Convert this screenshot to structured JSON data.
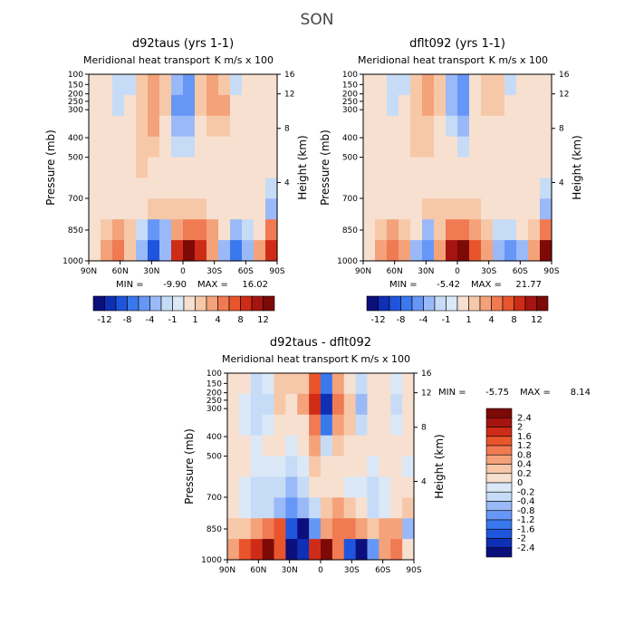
{
  "page_title": "SON",
  "colors": {
    "cold": [
      "#0b0f7c",
      "#0f2fb5",
      "#1f55dc",
      "#3a78ee",
      "#6797f6",
      "#9ab9f8",
      "#c6dcf6",
      "#dbe8f8"
    ],
    "warm": [
      "#f7e0d0",
      "#f7c8a8",
      "#f4a27a",
      "#f07a52",
      "#e8552c",
      "#cf2c18",
      "#a51410",
      "#7d0a07"
    ]
  },
  "chart_data": [
    {
      "id": "panel1",
      "type": "heatmap",
      "title": "d92taus (yrs 1-1)",
      "subtitle": "Meridional heat transport",
      "units": "K m/s x 100",
      "ylabel": "Pressure (mb)",
      "ylabel_right": "Height (km)",
      "x_ticks": [
        "90N",
        "60N",
        "30N",
        "0",
        "30S",
        "60S",
        "90S"
      ],
      "y_ticks": [
        "100",
        "150",
        "200",
        "250",
        "300",
        "400",
        "500",
        "700",
        "850",
        "1000"
      ],
      "height_ticks": [
        "16",
        "12",
        "8",
        "4"
      ],
      "min_label": "MIN =",
      "min_value": "-9.90",
      "max_label": "MAX =",
      "max_value": "16.02",
      "colorbar_labels": [
        "-12",
        "-8",
        "-4",
        "-1",
        "1",
        "4",
        "8",
        "12"
      ],
      "field": [
        [
          0,
          0,
          -1,
          -1,
          1,
          2,
          1,
          -3,
          -4,
          1,
          2,
          1,
          -1,
          0,
          0,
          0
        ],
        [
          0,
          0,
          -1,
          0,
          1,
          3,
          1,
          -4,
          -5,
          1,
          2,
          2,
          0,
          0,
          0,
          0
        ],
        [
          0,
          0,
          0,
          0,
          1,
          2,
          0,
          -2,
          -3,
          0,
          1,
          1,
          0,
          0,
          0,
          0
        ],
        [
          0,
          0,
          0,
          0,
          1,
          1,
          0,
          -1,
          -1,
          0,
          0,
          0,
          0,
          0,
          0,
          0
        ],
        [
          0,
          0,
          0,
          0,
          1,
          0,
          0,
          0,
          0,
          0,
          0,
          0,
          0,
          0,
          0,
          0
        ],
        [
          0,
          0,
          0,
          0,
          0,
          0,
          0,
          0,
          0,
          0,
          0,
          0,
          0,
          0,
          0,
          -1
        ],
        [
          0,
          0,
          0,
          0,
          0,
          1,
          1,
          1,
          1,
          1,
          0,
          0,
          0,
          0,
          0,
          -2
        ],
        [
          0,
          1,
          2,
          1,
          -1,
          -4,
          -2,
          3,
          5,
          4,
          2,
          0,
          -2,
          -1,
          0,
          4
        ],
        [
          0,
          2,
          4,
          1,
          -3,
          -8,
          -3,
          8,
          12,
          8,
          3,
          -2,
          -6,
          -3,
          2,
          9
        ]
      ]
    },
    {
      "id": "panel2",
      "type": "heatmap",
      "title": "dflt092 (yrs 1-1)",
      "subtitle": "Meridional heat transport",
      "units": "K m/s x 100",
      "ylabel": "Pressure (mb)",
      "ylabel_right": "Height (km)",
      "x_ticks": [
        "90N",
        "60N",
        "30N",
        "0",
        "30S",
        "60S",
        "90S"
      ],
      "y_ticks": [
        "100",
        "150",
        "200",
        "250",
        "300",
        "400",
        "500",
        "700",
        "850",
        "1000"
      ],
      "height_ticks": [
        "16",
        "12",
        "8",
        "4"
      ],
      "min_label": "MIN =",
      "min_value": "-5.42",
      "max_label": "MAX =",
      "max_value": "21.77",
      "colorbar_labels": [
        "-12",
        "-8",
        "-4",
        "-1",
        "1",
        "4",
        "8",
        "12"
      ],
      "field": [
        [
          0,
          0,
          -1,
          -1,
          1,
          2,
          1,
          -3,
          -4,
          0,
          1,
          1,
          -1,
          0,
          0,
          0
        ],
        [
          0,
          0,
          -1,
          0,
          1,
          2,
          1,
          -3,
          -4,
          0,
          1,
          1,
          0,
          0,
          0,
          0
        ],
        [
          0,
          0,
          0,
          0,
          1,
          1,
          0,
          -1,
          -2,
          0,
          0,
          0,
          0,
          0,
          0,
          0
        ],
        [
          0,
          0,
          0,
          0,
          1,
          1,
          0,
          0,
          -1,
          0,
          0,
          0,
          0,
          0,
          0,
          0
        ],
        [
          0,
          0,
          0,
          0,
          0,
          0,
          0,
          0,
          0,
          0,
          0,
          0,
          0,
          0,
          0,
          0
        ],
        [
          0,
          0,
          0,
          0,
          0,
          0,
          0,
          0,
          0,
          0,
          0,
          0,
          0,
          0,
          0,
          -1
        ],
        [
          0,
          0,
          0,
          0,
          0,
          1,
          1,
          1,
          1,
          1,
          0,
          0,
          0,
          0,
          0,
          -2
        ],
        [
          0,
          1,
          2,
          1,
          0,
          -2,
          1,
          4,
          4,
          3,
          1,
          -1,
          -1,
          0,
          1,
          5
        ],
        [
          0,
          2,
          4,
          2,
          -2,
          -5,
          2,
          10,
          13,
          6,
          2,
          -2,
          -4,
          -2,
          3,
          14
        ]
      ]
    },
    {
      "id": "panel3",
      "type": "heatmap",
      "title": "d92taus - dflt092",
      "subtitle": "Meridional heat transport",
      "units": "K m/s x 100",
      "ylabel": "Pressure (mb)",
      "ylabel_right": "Height (km)",
      "x_ticks": [
        "90N",
        "60N",
        "30N",
        "0",
        "30S",
        "60S",
        "90S"
      ],
      "y_ticks": [
        "100",
        "150",
        "200",
        "250",
        "300",
        "400",
        "500",
        "700",
        "850",
        "1000"
      ],
      "height_ticks": [
        "16",
        "12",
        "8",
        "4"
      ],
      "min_label": "MIN =",
      "min_value": "-5.75",
      "max_label": "MAX =",
      "max_value": "8.14",
      "colorbar_labels": [
        "2.4",
        "2",
        "1.6",
        "1.2",
        "0.8",
        "0.4",
        "0.2",
        "0",
        "-0.2",
        "-0.4",
        "-0.8",
        "-1.2",
        "-1.6",
        "-2",
        "-2.4"
      ],
      "field": [
        [
          0,
          0,
          -0.3,
          -0.1,
          0.3,
          0.2,
          0.3,
          1.2,
          -1.5,
          0.6,
          0.1,
          -0.3,
          0.1,
          0.1,
          -0.1,
          0
        ],
        [
          0,
          -0.1,
          -0.3,
          -0.2,
          0.3,
          0.1,
          0.4,
          1.8,
          -2.2,
          0.8,
          0.2,
          -0.4,
          0.1,
          0.1,
          -0.2,
          0
        ],
        [
          0,
          -0.1,
          -0.2,
          -0.1,
          0.1,
          0,
          0.1,
          1,
          -1.2,
          0.5,
          0.2,
          -0.2,
          0.1,
          0,
          -0.1,
          0
        ],
        [
          0,
          0,
          -0.1,
          0,
          0,
          -0.1,
          0.1,
          0.4,
          -0.3,
          0.2,
          0.1,
          0,
          0,
          0,
          0,
          0
        ],
        [
          0,
          0,
          -0.1,
          -0.1,
          -0.1,
          -0.2,
          -0.1,
          0.2,
          0,
          0.1,
          0,
          0,
          -0.1,
          0,
          0,
          -0.1
        ],
        [
          0,
          -0.1,
          -0.2,
          -0.2,
          -0.3,
          -0.4,
          -0.3,
          0,
          0,
          0,
          -0.1,
          -0.1,
          -0.2,
          -0.1,
          0,
          0
        ],
        [
          0,
          -0.1,
          -0.2,
          -0.3,
          -0.5,
          -0.8,
          -0.6,
          -0.2,
          0.3,
          0.4,
          0.2,
          0,
          -0.2,
          -0.1,
          0.1,
          0.2
        ],
        [
          0.2,
          0.3,
          0.5,
          0.8,
          1.2,
          -1.6,
          -2.4,
          -0.8,
          0.6,
          1,
          0.8,
          0.4,
          0.2,
          0.4,
          0.6,
          -0.4
        ],
        [
          0.6,
          1.2,
          1.8,
          2.4,
          1.2,
          -2.4,
          -2,
          1.6,
          2.4,
          0.8,
          -1.6,
          -2.4,
          -0.8,
          0.4,
          0.8,
          0
        ]
      ]
    }
  ]
}
